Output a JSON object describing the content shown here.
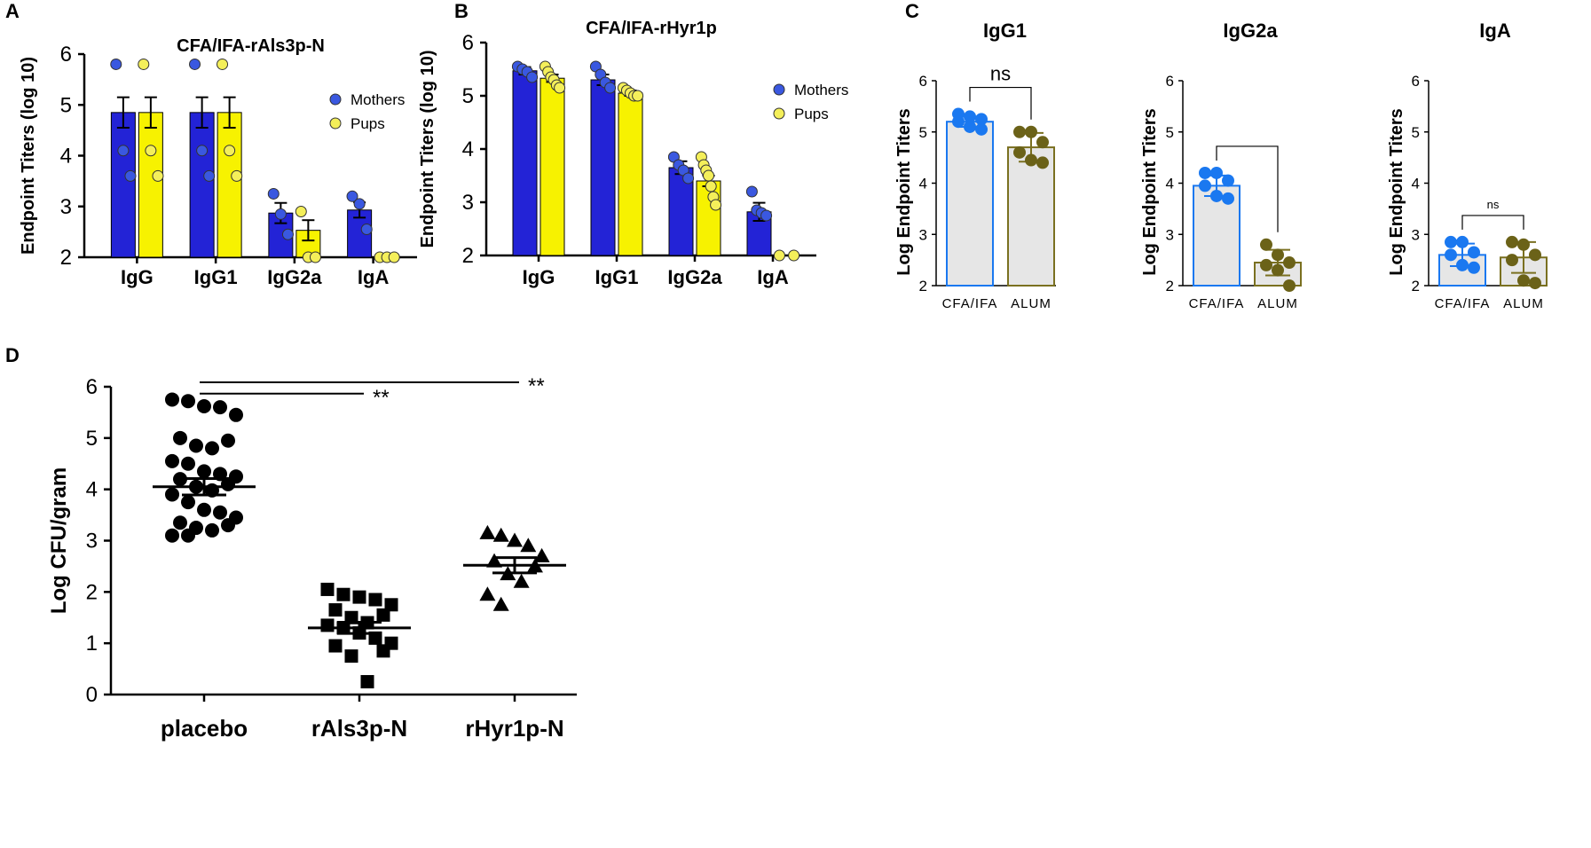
{
  "figure": {
    "colors": {
      "blue": "#2323d6",
      "yellow": "#f7f200",
      "dot_blue": "#3a58e0",
      "dot_yellow": "#f4ef5a",
      "c_blue": "#1a78f0",
      "olive": "#7a7020",
      "olive_dot": "#6b6218",
      "gray_fill": "#e6e6e6",
      "black": "#000000"
    }
  },
  "chart_data": [
    {
      "id": "A",
      "panel_label": "A",
      "type": "bar",
      "title": "CFA/IFA-rAls3p-N",
      "ylabel": "Endpoint Titers (log 10)",
      "xlabel": "",
      "ylim": [
        2,
        6
      ],
      "yticks": [
        "2",
        "3",
        "4",
        "5",
        "6"
      ],
      "categories": [
        "IgG",
        "IgG1",
        "IgG2a",
        "IgA"
      ],
      "legend": {
        "position": "right",
        "entries": [
          "Mothers",
          "Pups"
        ]
      },
      "series": [
        {
          "name": "Mothers",
          "color": "#2323d6",
          "dot_color": "#3a58e0",
          "values": [
            4.85,
            4.85,
            2.87,
            2.93
          ],
          "sem": [
            0.3,
            0.3,
            0.2,
            0.15
          ],
          "points": [
            [
              5.8,
              4.1,
              3.6
            ],
            [
              5.8,
              4.1,
              3.6
            ],
            [
              3.25,
              2.85,
              2.45
            ],
            [
              3.2,
              3.05,
              2.55
            ]
          ]
        },
        {
          "name": "Pups",
          "color": "#f7f200",
          "dot_color": "#f4ef5a",
          "values": [
            4.85,
            4.85,
            2.53,
            2.0
          ],
          "sem": [
            0.3,
            0.3,
            0.2,
            0.0
          ],
          "points": [
            [
              5.8,
              4.1,
              3.6
            ],
            [
              5.8,
              4.1,
              3.6
            ],
            [
              2.9,
              2.0,
              2.0
            ],
            [
              2.0,
              2.0,
              2.0
            ]
          ]
        }
      ]
    },
    {
      "id": "B",
      "panel_label": "B",
      "type": "bar",
      "title": "CFA/IFA-rHyr1p",
      "ylabel": "Endpoint Titers (log 10)",
      "xlabel": "",
      "ylim": [
        2,
        6
      ],
      "yticks": [
        "2",
        "3",
        "4",
        "5",
        "6"
      ],
      "categories": [
        "IgG",
        "IgG1",
        "IgG2a",
        "IgA"
      ],
      "legend": {
        "position": "right",
        "entries": [
          "Mothers",
          "Pups"
        ]
      },
      "series": [
        {
          "name": "Mothers",
          "color": "#2323d6",
          "dot_color": "#3a58e0",
          "values": [
            5.47,
            5.3,
            3.65,
            2.82
          ],
          "sem": [
            0.07,
            0.1,
            0.12,
            0.17
          ],
          "points": [
            [
              5.55,
              5.5,
              5.45,
              5.35
            ],
            [
              5.55,
              5.4,
              5.25,
              5.15
            ],
            [
              3.85,
              3.7,
              3.6,
              3.45
            ],
            [
              3.2,
              2.85,
              2.8,
              2.75
            ]
          ]
        },
        {
          "name": "Pups",
          "color": "#f7f200",
          "dot_color": "#f4ef5a",
          "values": [
            5.33,
            5.05,
            3.4,
            2.0
          ],
          "sem": [
            0.07,
            0.05,
            0.1,
            0.0
          ],
          "points": [
            [
              5.55,
              5.45,
              5.35,
              5.3,
              5.2,
              5.15
            ],
            [
              5.15,
              5.1,
              5.05,
              5.0,
              5.0
            ],
            [
              3.85,
              3.7,
              3.6,
              3.5,
              3.3,
              3.1,
              2.95
            ],
            [
              2.0,
              2.0
            ]
          ]
        }
      ]
    },
    {
      "id": "C1",
      "panel_label": "C",
      "type": "bar",
      "title": "IgG1",
      "ylabel": "Log Endpoint Titers",
      "xlabel": "",
      "ylim": [
        2,
        6
      ],
      "yticks": [
        "2",
        "3",
        "4",
        "5",
        "6"
      ],
      "categories": [
        "CFA/IFA",
        "ALUM"
      ],
      "values": [
        5.2,
        4.7
      ],
      "sd": [
        0.1,
        0.28
      ],
      "points": [
        [
          5.35,
          5.3,
          5.25,
          5.2,
          5.1,
          5.05
        ],
        [
          5.0,
          5.0,
          4.8,
          4.6,
          4.45,
          4.4
        ]
      ],
      "significance": "ns"
    },
    {
      "id": "C2",
      "panel_label": "",
      "type": "bar",
      "title": "IgG2a",
      "ylabel": "Log Endpoint Titers",
      "xlabel": "",
      "ylim": [
        2,
        6
      ],
      "yticks": [
        "2",
        "3",
        "4",
        "5",
        "6"
      ],
      "categories": [
        "CFA/IFA",
        "ALUM"
      ],
      "values": [
        3.95,
        2.45
      ],
      "sd": [
        0.2,
        0.25
      ],
      "points": [
        [
          4.2,
          4.2,
          4.05,
          3.95,
          3.75,
          3.7
        ],
        [
          2.8,
          2.6,
          2.45,
          2.4,
          2.3,
          2.0
        ]
      ],
      "significance": ""
    },
    {
      "id": "C3",
      "panel_label": "",
      "type": "bar",
      "title": "IgA",
      "ylabel": "Log Endpoint Titers",
      "xlabel": "",
      "ylim": [
        2,
        6
      ],
      "yticks": [
        "2",
        "3",
        "4",
        "5",
        "6"
      ],
      "categories": [
        "CFA/IFA",
        "ALUM"
      ],
      "values": [
        2.6,
        2.55
      ],
      "sd": [
        0.22,
        0.3
      ],
      "points": [
        [
          2.85,
          2.85,
          2.65,
          2.6,
          2.4,
          2.35
        ],
        [
          2.85,
          2.8,
          2.6,
          2.5,
          2.1,
          2.05
        ]
      ],
      "significance": "ns"
    },
    {
      "id": "D",
      "panel_label": "D",
      "type": "scatter",
      "title": "",
      "ylabel": "Log CFU/gram",
      "xlabel": "",
      "ylim": [
        0,
        6
      ],
      "yticks": [
        "0",
        "1",
        "2",
        "3",
        "4",
        "5",
        "6"
      ],
      "categories": [
        "placebo",
        "rAls3p-N",
        "rHyr1p-N"
      ],
      "groups": [
        {
          "name": "placebo",
          "marker": "circle",
          "mean": 4.05,
          "sem": 0.16,
          "points": [
            5.75,
            5.72,
            5.62,
            5.6,
            5.45,
            5.0,
            4.95,
            4.85,
            4.8,
            4.55,
            4.5,
            4.35,
            4.3,
            4.25,
            4.2,
            4.1,
            4.05,
            3.98,
            3.9,
            3.75,
            3.6,
            3.55,
            3.45,
            3.35,
            3.3,
            3.25,
            3.2,
            3.1,
            3.1
          ]
        },
        {
          "name": "rAls3p-N",
          "marker": "square",
          "mean": 1.3,
          "sem": 0.11,
          "points": [
            2.05,
            1.95,
            1.9,
            1.85,
            1.75,
            1.65,
            1.55,
            1.5,
            1.4,
            1.35,
            1.3,
            1.2,
            1.1,
            1.0,
            0.95,
            0.85,
            0.75,
            0.25
          ]
        },
        {
          "name": "rHyr1p-N",
          "marker": "triangle",
          "mean": 2.52,
          "sem": 0.15,
          "points": [
            3.15,
            3.1,
            3.0,
            2.9,
            2.7,
            2.6,
            2.5,
            2.35,
            2.2,
            1.95,
            1.75
          ]
        }
      ],
      "comparisons": [
        {
          "from": "placebo",
          "to": "rAls3p-N",
          "label": "**"
        },
        {
          "from": "placebo",
          "to": "rHyr1p-N",
          "label": "**"
        }
      ]
    }
  ]
}
